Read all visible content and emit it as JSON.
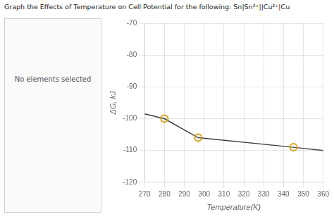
{
  "chart_data": {
    "type": "line",
    "title": "Graph the Effects of Temperature on Cell Potential for the following:  Sn|Sn²⁺||Cu²⁺|Cu",
    "annotations": [
      "No elements selected"
    ],
    "xlabel": "Temperature(K)",
    "ylabel": "ΔG, kJ",
    "series": [
      {
        "type": "line",
        "color": "#404040",
        "x": [
          270,
          280,
          297,
          345,
          360
        ],
        "values": [
          -98.5,
          -100,
          -106,
          -109,
          -110.0
        ]
      },
      {
        "type": "scatter",
        "color": "#d4a017",
        "marker": "circle",
        "x": [
          280,
          297,
          345
        ],
        "values": [
          -100,
          -106,
          -109
        ]
      }
    ],
    "xlim": [
      270,
      360
    ],
    "ylim": [
      -120,
      -70
    ],
    "xticks": [
      270,
      280,
      290,
      300,
      310,
      320,
      330,
      340,
      350,
      360
    ],
    "yticks": [
      -120,
      -110,
      -100,
      -90,
      -80,
      -70
    ],
    "grid": true
  }
}
